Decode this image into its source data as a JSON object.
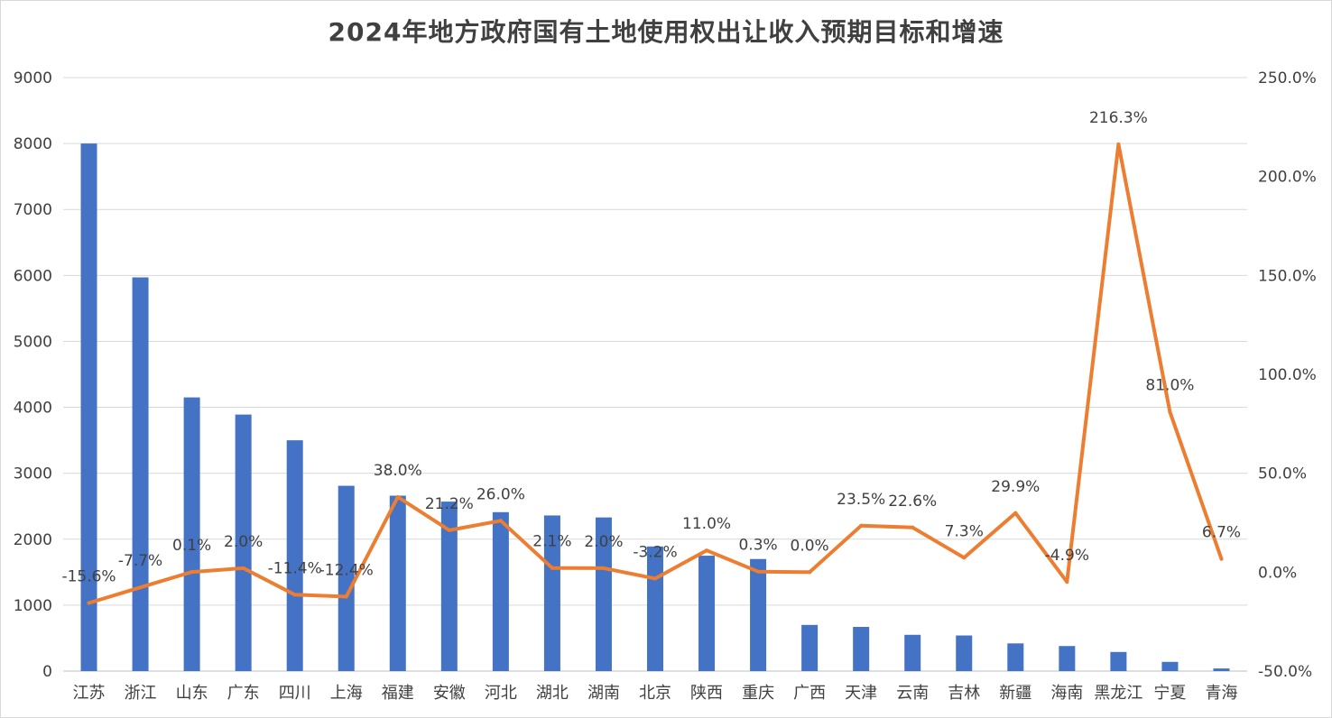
{
  "chart_data": {
    "type": "bar+line",
    "title": "2024年地方政府国有土地使用权出让收入预期目标和增速",
    "categories": [
      "江苏",
      "浙江",
      "山东",
      "广东",
      "四川",
      "上海",
      "福建",
      "安徽",
      "河北",
      "湖北",
      "湖南",
      "北京",
      "陕西",
      "重庆",
      "广西",
      "天津",
      "云南",
      "吉林",
      "新疆",
      "海南",
      "黑龙江",
      "宁夏",
      "青海"
    ],
    "series": [
      {
        "type": "bar",
        "axis": "left",
        "color": "#4472C4",
        "values": [
          8000,
          5970,
          4150,
          3890,
          3500,
          2810,
          2660,
          2570,
          2410,
          2360,
          2330,
          1890,
          1750,
          1700,
          700,
          670,
          550,
          540,
          420,
          380,
          290,
          140,
          40
        ]
      },
      {
        "type": "line",
        "axis": "right",
        "color": "#ED7D31",
        "values": [
          -15.6,
          -7.7,
          0.1,
          2.0,
          -11.4,
          -12.4,
          38.0,
          21.2,
          26.0,
          2.1,
          2.0,
          -3.2,
          11.0,
          0.3,
          0.0,
          23.5,
          22.6,
          7.3,
          29.9,
          -4.9,
          216.3,
          81.0,
          6.7
        ],
        "labels": [
          "-15.6%",
          "-7.7%",
          "0.1%",
          "2.0%",
          "-11.4%",
          "-12.4%",
          "38.0%",
          "21.2%",
          "26.0%",
          "2.1%",
          "2.0%",
          "-3.2%",
          "11.0%",
          "0.3%",
          "0.0%",
          "23.5%",
          "22.6%",
          "7.3%",
          "29.9%",
          "-4.9%",
          "216.3%",
          "81.0%",
          "6.7%"
        ]
      }
    ],
    "left_axis": {
      "ylim": [
        0,
        9000
      ],
      "ticks": [
        0,
        1000,
        2000,
        3000,
        4000,
        5000,
        6000,
        7000,
        8000,
        9000
      ],
      "tick_labels": [
        "0",
        "1000",
        "2000",
        "3000",
        "4000",
        "5000",
        "6000",
        "7000",
        "8000",
        "9000"
      ]
    },
    "right_axis": {
      "ylim": [
        -50,
        250
      ],
      "ticks": [
        -50,
        0,
        50,
        100,
        150,
        200,
        250
      ],
      "tick_labels": [
        "-50.0%",
        "0.0%",
        "50.0%",
        "100.0%",
        "150.0%",
        "200.0%",
        "250.0%"
      ]
    },
    "grid": true,
    "legend": "none"
  }
}
